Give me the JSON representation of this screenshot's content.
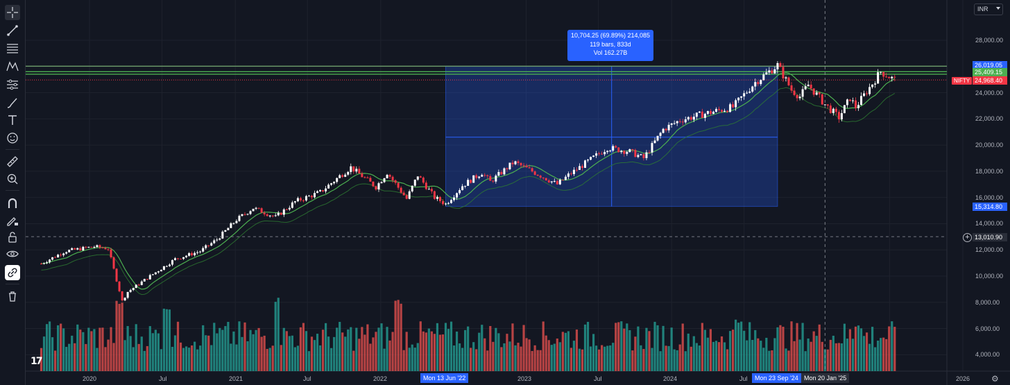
{
  "toolbar": {
    "tools": [
      {
        "name": "crosshair-tool",
        "icon": "crosshair-icon"
      },
      {
        "name": "trend-line-tool",
        "icon": "trend-line-icon"
      },
      {
        "name": "fib-tool",
        "icon": "fib-retracement-icon"
      },
      {
        "name": "pattern-tool",
        "icon": "pattern-icon"
      },
      {
        "name": "forecast-tool",
        "icon": "prediction-icon"
      },
      {
        "name": "brush-tool",
        "icon": "brush-icon"
      },
      {
        "name": "text-tool",
        "icon": "text-icon"
      },
      {
        "name": "emoji-tool",
        "icon": "smiley-icon"
      },
      {
        "name": "ruler-tool",
        "icon": "ruler-icon"
      },
      {
        "name": "zoom-tool",
        "icon": "zoom-in-icon"
      },
      {
        "name": "magnet-tool",
        "icon": "magnet-icon"
      },
      {
        "name": "lock-draw-tool",
        "icon": "pencil-lock-icon"
      },
      {
        "name": "lock-tool",
        "icon": "lock-icon"
      },
      {
        "name": "visibility-tool",
        "icon": "eye-icon"
      },
      {
        "name": "link-tool",
        "icon": "link-icon"
      },
      {
        "name": "delete-tool",
        "icon": "trash-icon"
      }
    ]
  },
  "header": {
    "currency": "INR"
  },
  "price_axis": {
    "ticks": [
      "28,000.00",
      "26,000.00",
      "24,000.00",
      "22,000.00",
      "20,000.00",
      "18,000.00",
      "16,000.00",
      "14,000.00",
      "12,000.00",
      "10,000.00",
      "8,000.00",
      "6,000.00",
      "4,000.00"
    ],
    "labels": {
      "high_label": "26,019.05",
      "green_label": "25,409.15",
      "last_price": "24,968.40",
      "measure_low": "15,314.80",
      "crosshair_price": "13,010.90"
    },
    "symbol": "NIFTY"
  },
  "time_axis": {
    "ticks": [
      "2020",
      "Jul",
      "2021",
      "Jul",
      "2022",
      "2023",
      "Jul",
      "2024",
      "Jul",
      "2026"
    ],
    "highlights": [
      "Mon 13 Jun '22",
      "Mon 23 Sep '24",
      "Mon 20 Jan '25"
    ]
  },
  "measure": {
    "line1": "10,704.25 (69.89%) 214,085",
    "line2": "119 bars, 833d",
    "line3": "Vol 162.27B"
  },
  "logo_text": "17",
  "colors": {
    "background": "#131722",
    "up": "#ffffff",
    "down": "#f23645",
    "volume_up": "#26a69a",
    "volume_down": "#ef5350",
    "ma": "#4caf50",
    "highlight": "#2962ff",
    "green_line": "#4caf50"
  },
  "chart_data": {
    "type": "candlestick",
    "symbol": "NIFTY",
    "interval": "weekly",
    "x_range": [
      "2019-09",
      "2025-07"
    ],
    "ylim": [
      3000,
      29500
    ],
    "close_anchors": [
      [
        "2019-09-02",
        10950
      ],
      [
        "2019-11-01",
        11900
      ],
      [
        "2020-01-13",
        12250
      ],
      [
        "2020-02-17",
        12100
      ],
      [
        "2020-03-23",
        8100
      ],
      [
        "2020-04-06",
        8800
      ],
      [
        "2020-06-01",
        10000
      ],
      [
        "2020-08-03",
        11300
      ],
      [
        "2020-10-05",
        11900
      ],
      [
        "2020-11-16",
        12800
      ],
      [
        "2021-01-04",
        14300
      ],
      [
        "2021-02-15",
        15200
      ],
      [
        "2021-04-12",
        14500
      ],
      [
        "2021-06-01",
        15700
      ],
      [
        "2021-08-02",
        16400
      ],
      [
        "2021-09-27",
        17800
      ],
      [
        "2021-10-18",
        18300
      ],
      [
        "2021-12-20",
        16800
      ],
      [
        "2022-01-17",
        17900
      ],
      [
        "2022-03-07",
        15900
      ],
      [
        "2022-04-04",
        17700
      ],
      [
        "2022-05-16",
        16000
      ],
      [
        "2022-06-13",
        15500
      ],
      [
        "2022-07-25",
        16900
      ],
      [
        "2022-09-12",
        17900
      ],
      [
        "2022-10-03",
        17200
      ],
      [
        "2022-12-01",
        18700
      ],
      [
        "2023-01-16",
        18000
      ],
      [
        "2023-03-20",
        17000
      ],
      [
        "2023-04-17",
        17700
      ],
      [
        "2023-06-26",
        19200
      ],
      [
        "2023-07-24",
        19800
      ],
      [
        "2023-09-18",
        19500
      ],
      [
        "2023-10-23",
        19000
      ],
      [
        "2023-12-11",
        21200
      ],
      [
        "2024-01-22",
        21900
      ],
      [
        "2024-03-25",
        22400
      ],
      [
        "2024-06-03",
        22900
      ],
      [
        "2024-07-29",
        24800
      ],
      [
        "2024-09-23",
        26100
      ],
      [
        "2024-10-28",
        24200
      ],
      [
        "2024-11-18",
        23700
      ],
      [
        "2024-12-09",
        24600
      ],
      [
        "2025-01-20",
        23100
      ],
      [
        "2025-02-24",
        22100
      ],
      [
        "2025-03-24",
        23600
      ],
      [
        "2025-04-07",
        22900
      ],
      [
        "2025-05-19",
        24700
      ],
      [
        "2025-06-09",
        25600
      ],
      [
        "2025-07-14",
        24968.4
      ]
    ],
    "measure_range": {
      "start": "2022-06-13",
      "end": "2024-09-23",
      "low": 15314.8,
      "high": 26019.05
    },
    "horizontal_lines": [
      26019.05,
      25409.15,
      25600
    ],
    "crosshair": {
      "date": "2025-01-20",
      "price": 13010.9
    },
    "volume_axis_max": 8000,
    "volume_spikes": [
      [
        "2020-03",
        8200
      ],
      [
        "2020-07",
        7600
      ],
      [
        "2021-04",
        8400
      ],
      [
        "2024-06",
        6800
      ],
      [
        "2025-04",
        6300
      ],
      [
        "2022-02",
        8200
      ]
    ]
  }
}
